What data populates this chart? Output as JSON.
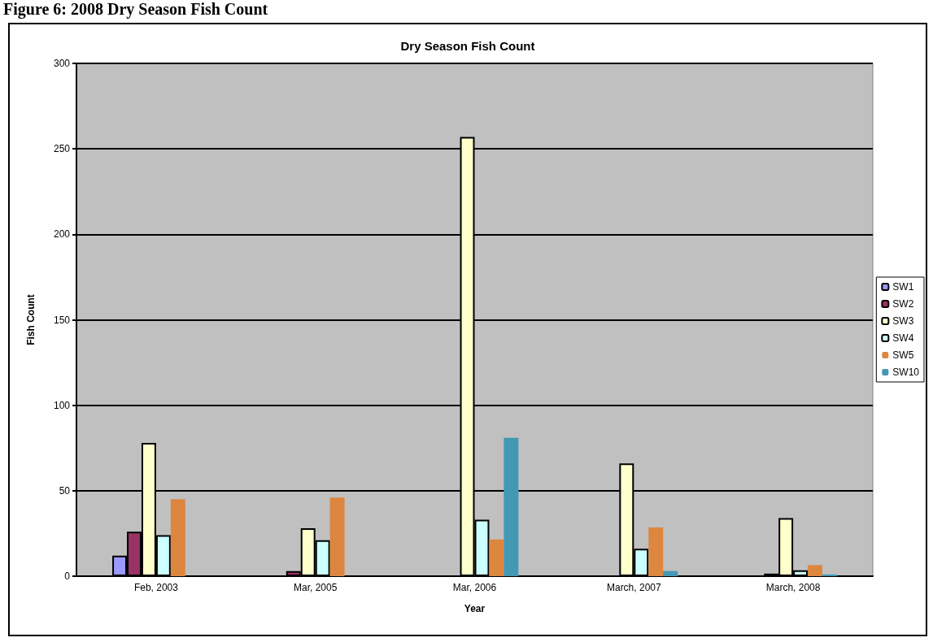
{
  "chart_data": {
    "type": "bar",
    "title": "Dry Season Fish Count",
    "xlabel": "Year",
    "ylabel": "Fish Count",
    "annotations": [
      "Figure 6: 2008 Dry Season Fish Count"
    ],
    "categories": [
      "Feb, 2003",
      "Mar, 2005",
      "Mar, 2006",
      "March, 2007",
      "March, 2008"
    ],
    "series": [
      {
        "name": "SW1",
        "color": "#9999ff",
        "values": [
          12,
          0,
          0,
          0,
          0
        ]
      },
      {
        "name": "SW2",
        "color": "#993366",
        "values": [
          26,
          3,
          0,
          0,
          1.5
        ]
      },
      {
        "name": "SW3",
        "color": "#ffffcc",
        "values": [
          78,
          28,
          257,
          66,
          34
        ]
      },
      {
        "name": "SW4",
        "color": "#ccffff",
        "values": [
          24,
          21,
          33,
          16,
          3.5
        ]
      },
      {
        "name": "SW5",
        "color": "#dd8640",
        "values": [
          45,
          46,
          21.5,
          28.5,
          6.5
        ]
      },
      {
        "name": "SW10",
        "color": "#4398b3",
        "values": [
          0,
          0,
          81,
          3,
          1
        ]
      }
    ],
    "ylim": [
      0,
      300
    ],
    "yticks": [
      0,
      50,
      100,
      150,
      200,
      250,
      300
    ],
    "grid": "y",
    "legend": "right"
  }
}
